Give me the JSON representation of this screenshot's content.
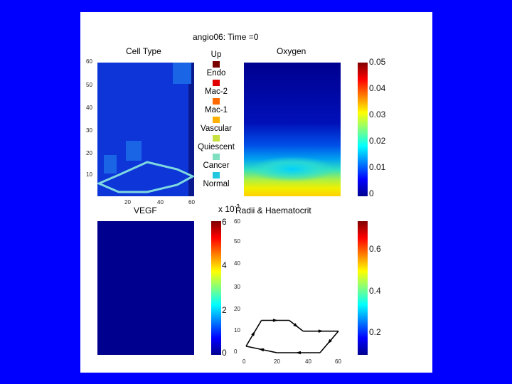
{
  "figure_title": "angio06: Time =0",
  "colors": {
    "background": "#0000ff",
    "panel_blue": "#0d35d8",
    "dark_navy": "#0a1a8e"
  },
  "chart_data": [
    {
      "type": "heatmap",
      "title": "Cell Type",
      "y_ticks": [
        "60",
        "50",
        "40",
        "30",
        "20",
        "10"
      ],
      "x_ticks": [
        "20",
        "40",
        "60"
      ],
      "legend": [
        "Up",
        "Endo",
        "Mac-2",
        "Mac-1",
        "Vascular",
        "Quiescent",
        "Cancer",
        "Normal"
      ],
      "legend_colors": [
        "#7a0000",
        "#e00000",
        "#ff6a00",
        "#ffb000",
        "#c8e040",
        "#7ee0c0",
        "#20c8e0",
        "#2070e0"
      ]
    },
    {
      "type": "heatmap",
      "title": "Oxygen",
      "colorbar_ticks": [
        "0.05",
        "0.04",
        "0.03",
        "0.02",
        "0.01",
        "0"
      ],
      "range": [
        0,
        0.05
      ]
    },
    {
      "type": "heatmap",
      "title": "VEGF",
      "colorbar_ticks": [
        "6",
        "4",
        "2",
        "0"
      ],
      "colorbar_exponent": "x 10",
      "colorbar_exponent_power": "-3"
    },
    {
      "type": "line",
      "title": "Radii & Haematocrit",
      "y_ticks": [
        "60",
        "50",
        "40",
        "30",
        "20",
        "10",
        "0"
      ],
      "x_ticks": [
        "0",
        "20",
        "40",
        "60"
      ],
      "xlim": [
        0,
        60
      ],
      "ylim": [
        0,
        60
      ],
      "loop_points": [
        [
          10,
          15
        ],
        [
          28,
          15
        ],
        [
          37,
          10
        ],
        [
          60,
          10
        ],
        [
          48,
          0
        ],
        [
          20,
          0
        ],
        [
          0,
          3
        ],
        [
          10,
          15
        ]
      ],
      "colorbar_ticks": [
        "0.6",
        "0.4",
        "0.2"
      ]
    }
  ]
}
